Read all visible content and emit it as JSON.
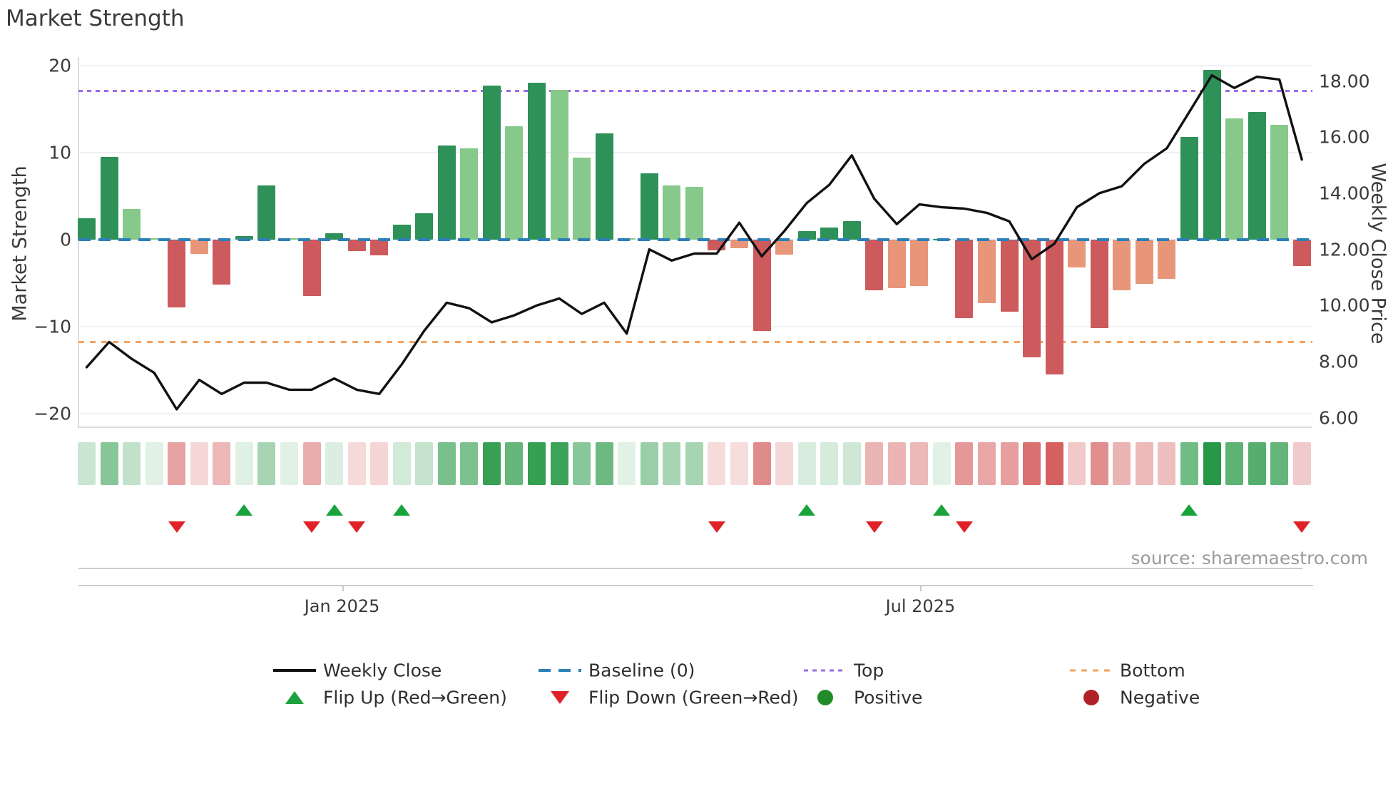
{
  "title": "Market Strength",
  "source_note": "source: sharemaestro.com",
  "axes": {
    "left_label": "Market Strength",
    "right_label": "Weekly Close Price",
    "left_ticks": [
      "20",
      "10",
      "0",
      "−10",
      "−20"
    ],
    "left_tick_values": [
      20,
      10,
      0,
      -10,
      -20
    ],
    "right_ticks": [
      "18.00",
      "16.00",
      "14.00",
      "12.00",
      "10.00",
      "8.00",
      "6.00"
    ],
    "right_tick_values": [
      18,
      16,
      14,
      12,
      10,
      8,
      6
    ],
    "x_ticks": [
      {
        "label": "Jan 2025",
        "week": 12.35
      },
      {
        "label": "Jul 2025",
        "week": 38.05
      }
    ],
    "left_range": [
      -20,
      20
    ],
    "right_range": [
      6,
      18
    ]
  },
  "chart_data": {
    "type": "bar+line",
    "x_unit": "week",
    "weeks": 55,
    "series": [
      {
        "name": "Market Strength (bars, left axis)",
        "values": [
          2.5,
          9.5,
          3.5,
          0.15,
          -7.8,
          -1.6,
          -5.2,
          0.4,
          6.2,
          0.15,
          -6.5,
          0.7,
          -1.3,
          -1.8,
          1.7,
          3.0,
          10.8,
          10.5,
          17.7,
          13.0,
          18.0,
          17.2,
          9.4,
          12.2,
          0.2,
          7.6,
          6.2,
          6.1,
          -1.2,
          -0.95,
          -10.5,
          -1.7,
          1.0,
          1.4,
          2.1,
          -5.8,
          -5.6,
          -5.3,
          0.1,
          -9.0,
          -7.3,
          -8.3,
          -13.5,
          -15.5,
          -3.2,
          -10.2,
          -5.8,
          -5.1,
          -4.5,
          11.8,
          19.5,
          13.9,
          14.7,
          13.2,
          -3.0
        ]
      },
      {
        "name": "Weekly Close (line, right axis)",
        "values": [
          7.8,
          8.7,
          8.1,
          7.6,
          6.3,
          7.35,
          6.85,
          7.25,
          7.25,
          7.0,
          7.0,
          7.4,
          7.0,
          6.85,
          7.9,
          9.1,
          10.1,
          9.9,
          9.4,
          9.65,
          10.0,
          10.25,
          9.7,
          10.1,
          9.0,
          12.0,
          11.6,
          11.85,
          11.85,
          12.95,
          11.75,
          12.65,
          13.65,
          14.3,
          15.35,
          13.8,
          12.9,
          13.6,
          13.5,
          13.45,
          13.3,
          13.0,
          11.65,
          12.2,
          13.5,
          14.0,
          14.25,
          15.05,
          15.6,
          16.9,
          18.2,
          17.75,
          18.15,
          18.05,
          15.2
        ]
      }
    ],
    "flip_up_weeks": [
      8,
      12,
      15,
      33,
      39,
      50
    ],
    "flip_down_weeks": [
      5,
      11,
      13,
      29,
      36,
      40,
      55
    ],
    "baseline_value": 0,
    "top_value": 17.1,
    "bottom_value": -11.8,
    "grid": true,
    "legend_position": "bottom"
  },
  "legend": {
    "row1": [
      {
        "label": "Weekly Close",
        "marker": "line-solid-black"
      },
      {
        "label": "Baseline (0)",
        "marker": "line-dashed-blue"
      },
      {
        "label": "Top",
        "marker": "line-dotted-purple"
      },
      {
        "label": "Bottom",
        "marker": "line-dotted-orange"
      }
    ],
    "row2": [
      {
        "label": "Flip Up (Red→Green)",
        "marker": "triangle-up-green"
      },
      {
        "label": "Flip Down (Green→Red)",
        "marker": "triangle-down-red"
      },
      {
        "label": "Positive",
        "marker": "dot-green"
      },
      {
        "label": "Negative",
        "marker": "dot-darkred"
      }
    ]
  },
  "colors": {
    "positive_rising": "#2e9158",
    "positive_falling": "#86c98b",
    "negative_falling": "#cd5a5c",
    "negative_rising": "#e8967a",
    "baseline": "#2d7fb8",
    "top_line": "#9b6ce8",
    "bottom_line": "#f4a460",
    "price_line": "#111111",
    "flip_up": "#1aa33c",
    "flip_down": "#e02127",
    "positive_dot": "#218c27",
    "negative_dot": "#b02127",
    "heat_green_rgb": "34,150,66",
    "heat_red_rgb": "203,57,57"
  }
}
